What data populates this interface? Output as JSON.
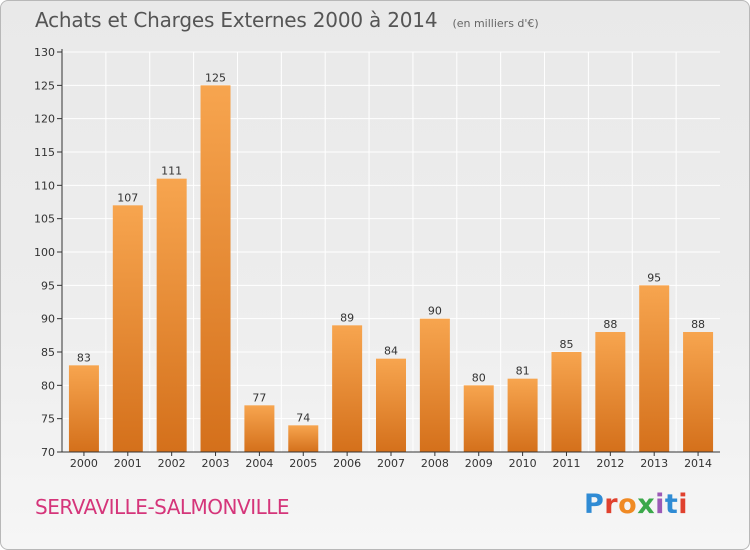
{
  "header": {
    "title": "Achats et Charges Externes 2000 à 2014",
    "subtitle": "(en milliers d'€)"
  },
  "footer": {
    "commune": "SERVAVILLE-SALMONVILLE",
    "brand": "Proxiti",
    "brand_colors": [
      "#2f8bd4",
      "#e0412e",
      "#f08a24",
      "#3aa84a",
      "#9b59b6",
      "#2f8bd4",
      "#e0412e"
    ]
  },
  "colors": {
    "bar_top": "#f7a54f",
    "bar_bottom": "#d4701b",
    "axis": "#333333",
    "grid": "#ffffff",
    "commune_text": "#d5357a"
  },
  "chart_data": {
    "type": "bar",
    "title": "Achats et Charges Externes 2000 à 2014",
    "subtitle": "(en milliers d'€)",
    "categories": [
      "2000",
      "2001",
      "2002",
      "2003",
      "2004",
      "2005",
      "2006",
      "2007",
      "2008",
      "2009",
      "2010",
      "2011",
      "2012",
      "2013",
      "2014"
    ],
    "values": [
      83,
      107,
      111,
      125,
      77,
      74,
      89,
      84,
      90,
      80,
      81,
      85,
      88,
      95,
      88
    ],
    "ylim": [
      70,
      130
    ],
    "yticks": [
      70,
      75,
      80,
      85,
      90,
      95,
      100,
      105,
      110,
      115,
      120,
      125,
      130
    ],
    "grid": true,
    "xlabel": "",
    "ylabel": ""
  }
}
